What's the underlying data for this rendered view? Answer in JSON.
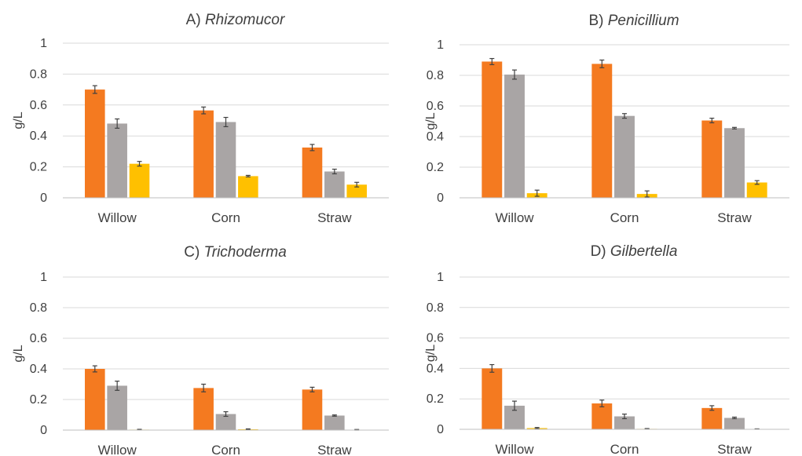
{
  "series_colors": [
    "#F47A20",
    "#A9A5A5",
    "#FFC000"
  ],
  "chart_data": [
    {
      "type": "bar",
      "title": "A) ",
      "title_italic": "Rhizomucor",
      "ylabel": "g/L",
      "ylim": [
        0,
        1
      ],
      "yticks": [
        "0",
        "0.2",
        "0.4",
        "0.6",
        "0.8",
        "1"
      ],
      "ytick_values": [
        0,
        0.2,
        0.4,
        0.6,
        0.8,
        1
      ],
      "categories": [
        "Willow",
        "Corn",
        "Straw"
      ],
      "grid": true,
      "series": [
        {
          "values": [
            0.7,
            0.565,
            0.325
          ],
          "errors": [
            0.025,
            0.022,
            0.02
          ]
        },
        {
          "values": [
            0.48,
            0.49,
            0.17
          ],
          "errors": [
            0.03,
            0.03,
            0.015
          ]
        },
        {
          "values": [
            0.22,
            0.14,
            0.085
          ],
          "errors": [
            0.015,
            0.005,
            0.015
          ]
        }
      ]
    },
    {
      "type": "bar",
      "title": "B) ",
      "title_italic": "Penicillium",
      "ylabel": "g/L",
      "ylim": [
        0,
        1
      ],
      "yticks": [
        "0",
        "0.2",
        "0.4",
        "0.6",
        "0.8",
        "1"
      ],
      "ytick_values": [
        0,
        0.2,
        0.4,
        0.6,
        0.8,
        1
      ],
      "categories": [
        "Willow",
        "Corn",
        "Straw"
      ],
      "grid": true,
      "series": [
        {
          "values": [
            0.89,
            0.875,
            0.505
          ],
          "errors": [
            0.02,
            0.025,
            0.015
          ]
        },
        {
          "values": [
            0.805,
            0.535,
            0.455
          ],
          "errors": [
            0.03,
            0.015,
            0.005
          ]
        },
        {
          "values": [
            0.03,
            0.025,
            0.1
          ],
          "errors": [
            0.02,
            0.02,
            0.012
          ]
        }
      ]
    },
    {
      "type": "bar",
      "title": "C) ",
      "title_italic": "Trichoderma",
      "ylabel": "g/L",
      "ylim": [
        0,
        1
      ],
      "yticks": [
        "0",
        "0.2",
        "0.4",
        "0.6",
        "0.8",
        "1"
      ],
      "ytick_values": [
        0,
        0.2,
        0.4,
        0.6,
        0.8,
        1
      ],
      "categories": [
        "Willow",
        "Corn",
        "Straw"
      ],
      "grid": true,
      "series": [
        {
          "values": [
            0.4,
            0.275,
            0.265
          ],
          "errors": [
            0.02,
            0.025,
            0.015
          ]
        },
        {
          "values": [
            0.29,
            0.105,
            0.095
          ],
          "errors": [
            0.03,
            0.015,
            0.004
          ]
        },
        {
          "values": [
            0.003,
            0.005,
            0.002
          ],
          "errors": [
            0.002,
            0.003,
            0.002
          ]
        }
      ]
    },
    {
      "type": "bar",
      "title": "D) ",
      "title_italic": "Gilbertella",
      "ylabel": "g/L",
      "ylim": [
        0,
        1
      ],
      "yticks": [
        "0",
        "0.2",
        "0.4",
        "0.6",
        "0.8",
        "1"
      ],
      "ytick_values": [
        0,
        0.2,
        0.4,
        0.6,
        0.8,
        1
      ],
      "categories": [
        "Willow",
        "Corn",
        "Straw"
      ],
      "grid": true,
      "series": [
        {
          "values": [
            0.4,
            0.17,
            0.14
          ],
          "errors": [
            0.025,
            0.022,
            0.015
          ]
        },
        {
          "values": [
            0.155,
            0.085,
            0.075
          ],
          "errors": [
            0.03,
            0.015,
            0.005
          ]
        },
        {
          "values": [
            0.008,
            0.003,
            0.002
          ],
          "errors": [
            0.004,
            0.002,
            0.001
          ]
        }
      ]
    }
  ]
}
